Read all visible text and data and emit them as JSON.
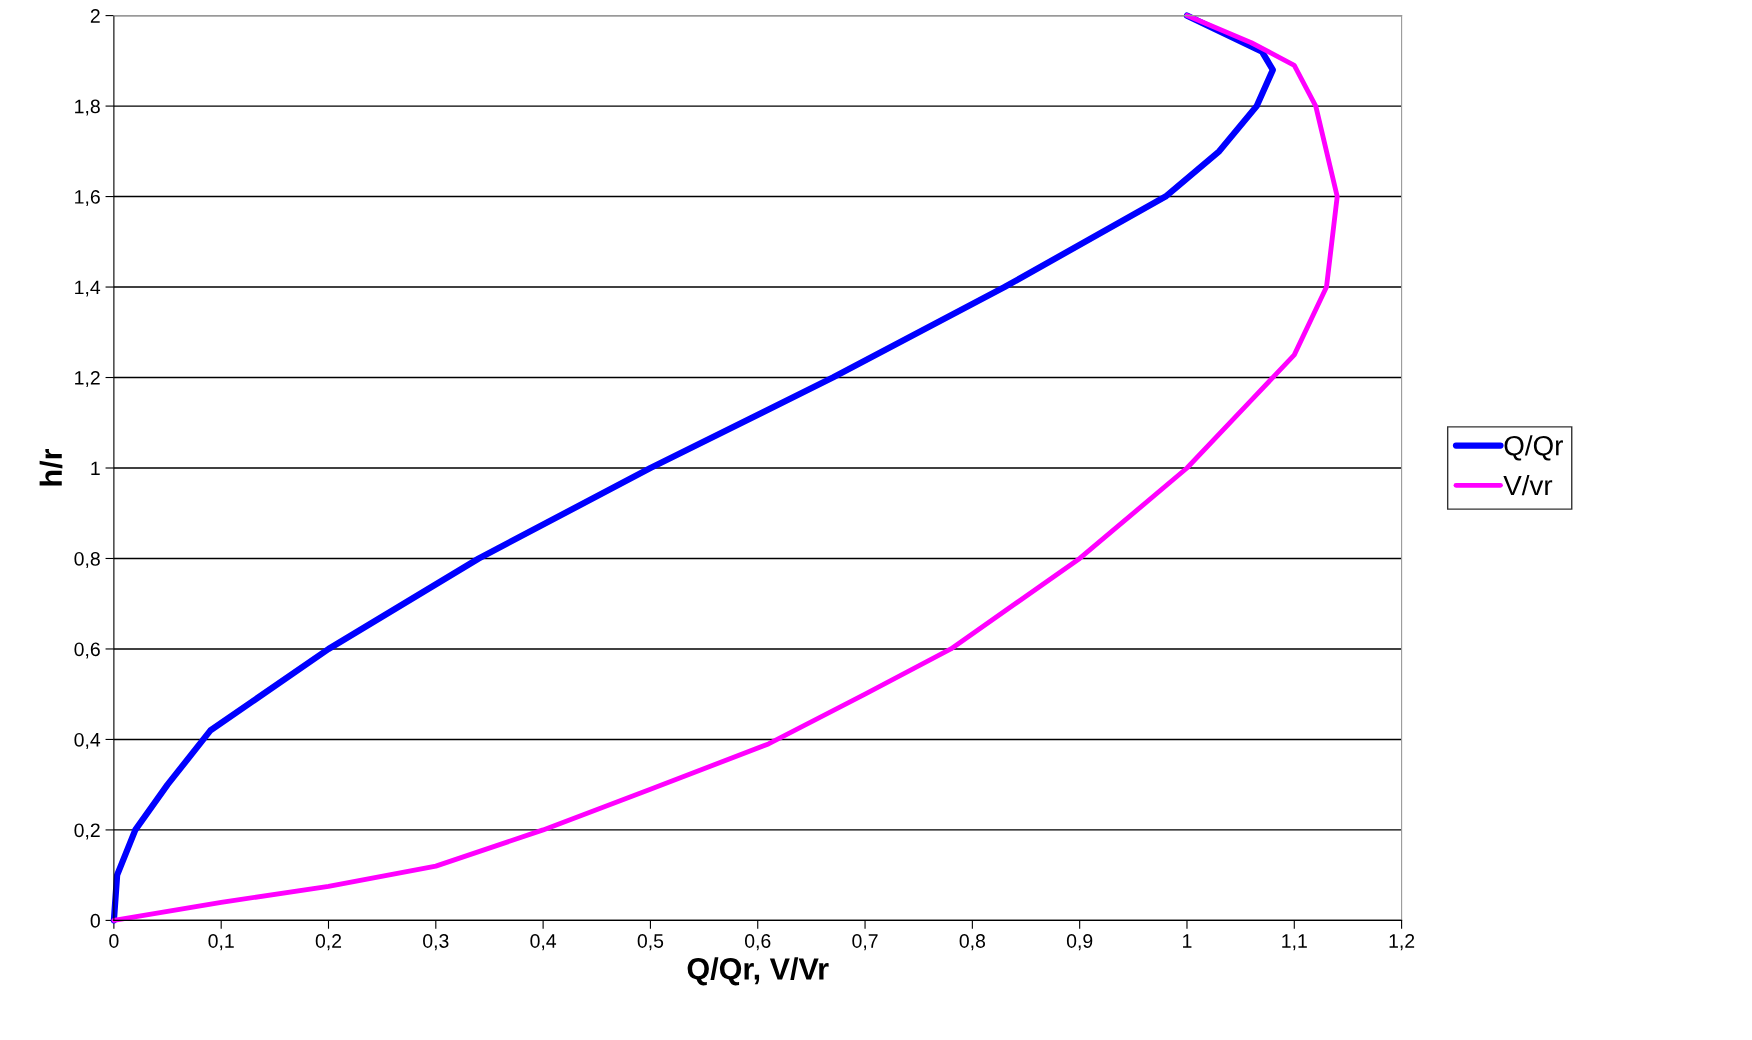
{
  "chart_data": {
    "type": "line",
    "xlabel": "Q/Qr, V/Vr",
    "ylabel": "h/r",
    "series": [
      {
        "name": "Q/Qr",
        "color": "#0000ff",
        "x": [
          0,
          0.003,
          0.02,
          0.05,
          0.09,
          0.2,
          0.34,
          0.5,
          0.67,
          0.83,
          0.98,
          1.03,
          1.065,
          1.08,
          1.07,
          1.0
        ],
        "values": [
          0,
          0.1,
          0.2,
          0.3,
          0.42,
          0.6,
          0.8,
          1.0,
          1.2,
          1.4,
          1.6,
          1.7,
          1.8,
          1.88,
          1.92,
          2.0
        ]
      },
      {
        "name": "V/vr",
        "color": "#ff00ff",
        "x": [
          0,
          0.1,
          0.2,
          0.3,
          0.4,
          0.5,
          0.61,
          0.7,
          0.78,
          0.9,
          1.0,
          1.06,
          1.1,
          1.13,
          1.14,
          1.12,
          1.1,
          1.06,
          1.0
        ],
        "values": [
          0,
          0.04,
          0.075,
          0.12,
          0.2,
          0.29,
          0.39,
          0.5,
          0.6,
          0.8,
          1.0,
          1.15,
          1.25,
          1.4,
          1.6,
          1.8,
          1.89,
          1.94,
          2.0
        ]
      }
    ],
    "xlim": [
      0,
      1.2
    ],
    "xticks": [
      0,
      {
        "value": 0.1,
        "label": "0,1"
      },
      {
        "value": 0.2,
        "label": "0,2"
      },
      {
        "value": 0.3,
        "label": "0,3"
      },
      {
        "value": 0.4,
        "label": "0,4"
      },
      {
        "value": 0.5,
        "label": "0,5"
      },
      {
        "value": 0.6,
        "label": "0,6"
      },
      {
        "value": 0.7,
        "label": "0,7"
      },
      {
        "value": 0.8,
        "label": "0,8"
      },
      {
        "value": 0.9,
        "label": "0,9"
      },
      1,
      {
        "value": 1.1,
        "label": "1,1"
      },
      {
        "value": 1.2,
        "label": "1,2"
      }
    ],
    "ylim": [
      0,
      2
    ],
    "yticks": [
      0,
      {
        "value": 0.2,
        "label": "0,2"
      },
      {
        "value": 0.4,
        "label": "0,4"
      },
      {
        "value": 0.6,
        "label": "0,6"
      },
      {
        "value": 0.8,
        "label": "0,8"
      },
      1,
      {
        "value": 1.2,
        "label": "1,2"
      },
      {
        "value": 1.4,
        "label": "1,4"
      },
      {
        "value": 1.6,
        "label": "1,6"
      },
      {
        "value": 1.8,
        "label": "1,8"
      },
      2
    ],
    "grid": "y",
    "legend": "right",
    "marker": "none",
    "line_style": "solid"
  }
}
